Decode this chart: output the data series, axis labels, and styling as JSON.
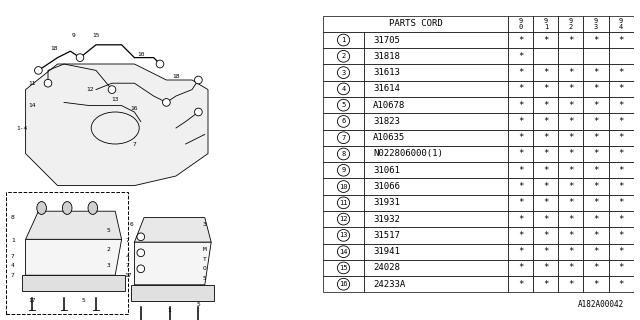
{
  "diagram_label": "A182A00042",
  "rows": [
    {
      "num": "1",
      "part": "31705",
      "cols": [
        "*",
        "*",
        "*",
        "*",
        "*"
      ]
    },
    {
      "num": "2",
      "part": "31818",
      "cols": [
        "*",
        "",
        "",
        "",
        ""
      ]
    },
    {
      "num": "3",
      "part": "31613",
      "cols": [
        "*",
        "*",
        "*",
        "*",
        "*"
      ]
    },
    {
      "num": "4",
      "part": "31614",
      "cols": [
        "*",
        "*",
        "*",
        "*",
        "*"
      ]
    },
    {
      "num": "5",
      "part": "A10678",
      "cols": [
        "*",
        "*",
        "*",
        "*",
        "*"
      ]
    },
    {
      "num": "6",
      "part": "31823",
      "cols": [
        "*",
        "*",
        "*",
        "*",
        "*"
      ]
    },
    {
      "num": "7",
      "part": "A10635",
      "cols": [
        "*",
        "*",
        "*",
        "*",
        "*"
      ]
    },
    {
      "num": "8",
      "part": "N022806000(1)",
      "cols": [
        "*",
        "*",
        "*",
        "*",
        "*"
      ]
    },
    {
      "num": "9",
      "part": "31061",
      "cols": [
        "*",
        "*",
        "*",
        "*",
        "*"
      ]
    },
    {
      "num": "10",
      "part": "31066",
      "cols": [
        "*",
        "*",
        "*",
        "*",
        "*"
      ]
    },
    {
      "num": "11",
      "part": "31931",
      "cols": [
        "*",
        "*",
        "*",
        "*",
        "*"
      ]
    },
    {
      "num": "12",
      "part": "31932",
      "cols": [
        "*",
        "*",
        "*",
        "*",
        "*"
      ]
    },
    {
      "num": "13",
      "part": "31517",
      "cols": [
        "*",
        "*",
        "*",
        "*",
        "*"
      ]
    },
    {
      "num": "14",
      "part": "31941",
      "cols": [
        "*",
        "*",
        "*",
        "*",
        "*"
      ]
    },
    {
      "num": "15",
      "part": "24028",
      "cols": [
        "*",
        "*",
        "*",
        "*",
        "*"
      ]
    },
    {
      "num": "16",
      "part": "24233A",
      "cols": [
        "*",
        "*",
        "*",
        "*",
        "*"
      ]
    }
  ],
  "bg_color": "#ffffff",
  "line_color": "#000000",
  "year_cols": [
    "9\n0",
    "9\n1",
    "9\n2",
    "9\n3",
    "9\n4"
  ]
}
